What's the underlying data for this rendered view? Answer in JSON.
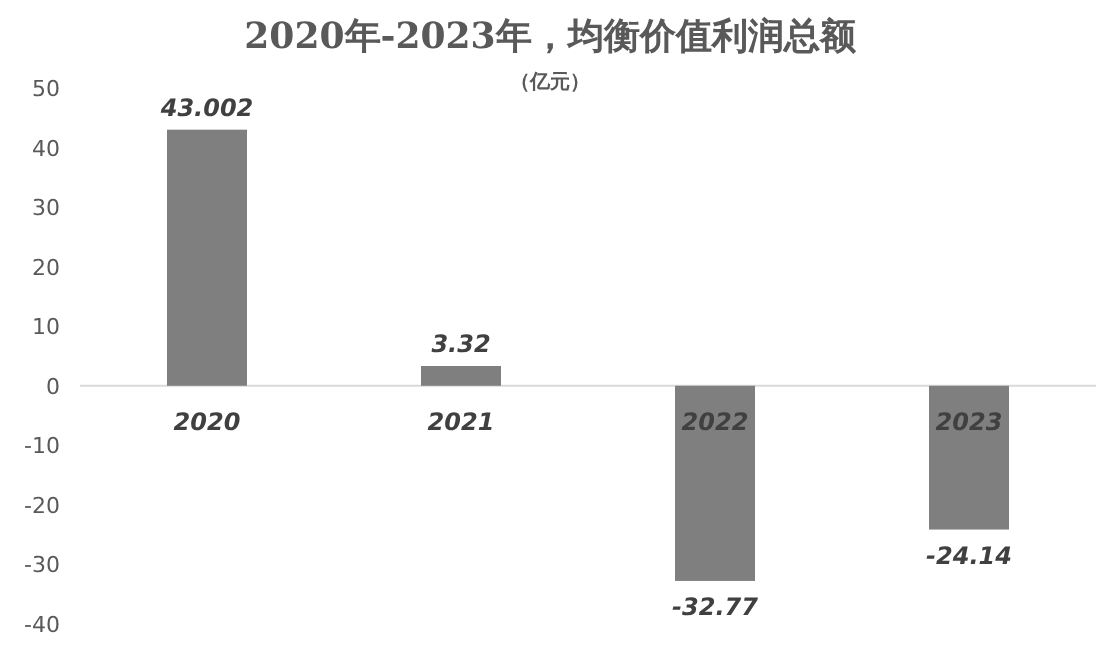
{
  "chart_data": {
    "type": "bar",
    "title": "2020年-2023年，均衡价值利润总额",
    "subtitle": "（亿元）",
    "categories": [
      "2020",
      "2021",
      "2022",
      "2023"
    ],
    "values": [
      43.002,
      3.32,
      -32.77,
      -24.14
    ],
    "color": "#7f7f7f",
    "ylim": [
      -40,
      50
    ],
    "yticks": [
      -40,
      -30,
      -20,
      -10,
      0,
      10,
      20,
      30,
      40,
      50
    ],
    "data_labels": true
  }
}
